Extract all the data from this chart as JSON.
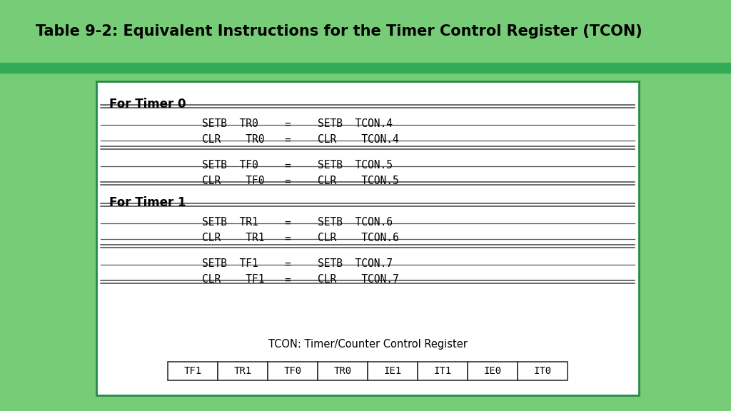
{
  "title": "Table 9-2: Equivalent Instructions for the Timer Control Register (TCON)",
  "title_bg": "#77cc77",
  "sep_bg": "#33aa55",
  "body_bg": "#ffffff",
  "border_color": "#228B44",
  "rows_data": [
    {
      "type": "header",
      "text": "For Timer 0"
    },
    {
      "type": "dline"
    },
    {
      "type": "row",
      "left": "SETB  TR0",
      "eq": "=",
      "right": "SETB  TCON.4"
    },
    {
      "type": "sline"
    },
    {
      "type": "row",
      "left": "CLR    TR0",
      "eq": "=",
      "right": "CLR    TCON.4"
    },
    {
      "type": "sline"
    },
    {
      "type": "gap"
    },
    {
      "type": "dline"
    },
    {
      "type": "row",
      "left": "SETB  TF0",
      "eq": "=",
      "right": "SETB  TCON.5"
    },
    {
      "type": "sline"
    },
    {
      "type": "row",
      "left": "CLR    TF0",
      "eq": "=",
      "right": "CLR    TCON.5"
    },
    {
      "type": "dline"
    },
    {
      "type": "header",
      "text": "For Timer 1"
    },
    {
      "type": "dline"
    },
    {
      "type": "row",
      "left": "SETB  TR1",
      "eq": "=",
      "right": "SETB  TCON.6"
    },
    {
      "type": "sline"
    },
    {
      "type": "row",
      "left": "CLR    TR1",
      "eq": "=",
      "right": "CLR    TCON.6"
    },
    {
      "type": "sline"
    },
    {
      "type": "gap"
    },
    {
      "type": "dline"
    },
    {
      "type": "row",
      "left": "SETB  TF1",
      "eq": "=",
      "right": "SETB  TCON.7"
    },
    {
      "type": "sline"
    },
    {
      "type": "row",
      "left": "CLR    TF1",
      "eq": "=",
      "right": "CLR    TCON.7"
    },
    {
      "type": "dline"
    }
  ],
  "footnote": "TCON: Timer/Counter Control Register",
  "register_bits": [
    "TF1",
    "TR1",
    "TF0",
    "TR0",
    "IE1",
    "IT1",
    "IE0",
    "IT0"
  ],
  "mono_font": "DejaVu Sans Mono",
  "sans_font": "DejaVu Sans",
  "title_fontsize": 15,
  "body_fontsize": 10.5,
  "reg_fontsize": 10
}
